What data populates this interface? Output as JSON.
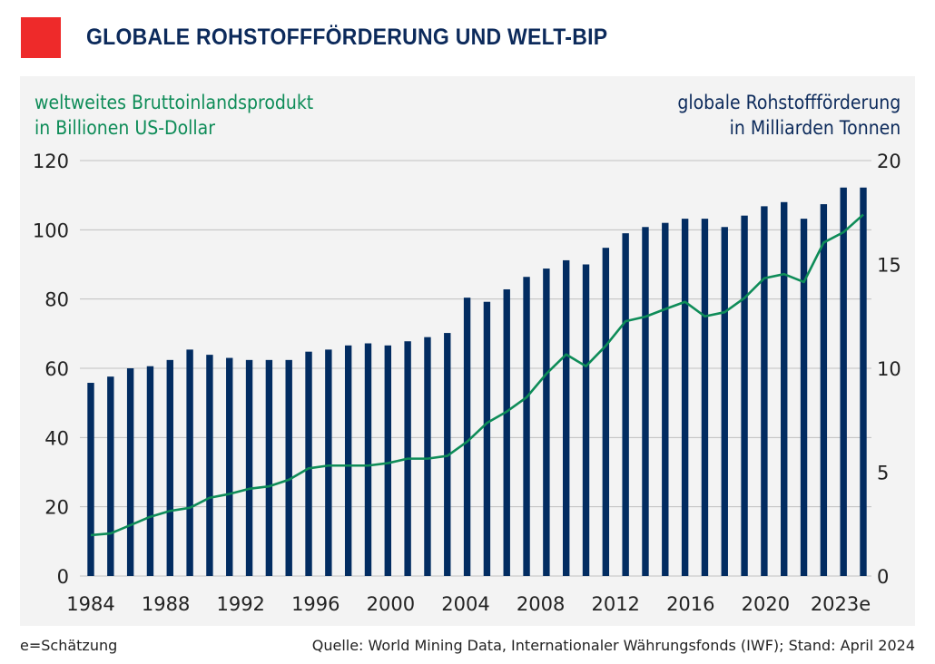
{
  "title": "GLOBALE ROHSTOFFFÖRDERUNG UND WELT-BIP",
  "footer": {
    "note": "e=Schätzung",
    "source": "Quelle: World Mining Data, Internationaler Währungsfonds (IWF); Stand: April 2024"
  },
  "colors": {
    "logo": "#ee2a2a",
    "bars": "#022c61",
    "line": "#0e8c58",
    "title": "#0c2a5b",
    "panel": "#f3f3f3",
    "grid": "#c0c0c0"
  },
  "chart_data": {
    "type": "bar+line",
    "left_axis": {
      "label_line1": "weltweites Bruttoinlandsprodukt",
      "label_line2": "in Billionen US-Dollar",
      "ylim": [
        0,
        120
      ],
      "ticks": [
        "0",
        "20",
        "40",
        "60",
        "80",
        "100",
        "120"
      ]
    },
    "right_axis": {
      "label_line1": "globale Rohstoffförderung",
      "label_line2": "in Milliarden Tonnen",
      "ylim": [
        0,
        20
      ],
      "ticks": [
        "0",
        "5",
        "10",
        "15",
        "20"
      ]
    },
    "x_tick_labels": [
      "1984",
      "1988",
      "1992",
      "1996",
      "2000",
      "2004",
      "2008",
      "2012",
      "2016",
      "2020",
      "2023e"
    ],
    "grid": true,
    "years": [
      1984,
      1985,
      1986,
      1987,
      1988,
      1989,
      1990,
      1991,
      1992,
      1993,
      1994,
      1995,
      1996,
      1997,
      1998,
      1999,
      2000,
      2001,
      2002,
      2003,
      2004,
      2005,
      2006,
      2007,
      2008,
      2009,
      2010,
      2011,
      2012,
      2013,
      2014,
      2015,
      2016,
      2017,
      2018,
      2019,
      2020,
      2021,
      2022,
      2023
    ],
    "series": [
      {
        "axis": "right",
        "kind": "bar",
        "values": [
          9.3,
          9.6,
          10.0,
          10.1,
          10.4,
          10.9,
          10.65,
          10.5,
          10.4,
          10.4,
          10.4,
          10.8,
          10.9,
          11.1,
          11.2,
          11.1,
          11.3,
          11.5,
          11.7,
          13.4,
          13.2,
          13.8,
          14.4,
          14.8,
          15.2,
          15.0,
          15.8,
          16.5,
          16.8,
          17.0,
          17.2,
          17.2,
          16.8,
          17.35,
          17.8,
          18.0,
          17.2,
          17.9,
          18.7,
          18.7
        ]
      },
      {
        "axis": "left",
        "kind": "line",
        "values": [
          11.8,
          12.3,
          14.7,
          17.1,
          18.8,
          19.7,
          22.6,
          23.7,
          25.2,
          25.9,
          27.8,
          31.1,
          31.9,
          31.9,
          31.9,
          32.6,
          33.9,
          33.9,
          34.7,
          38.8,
          44.2,
          47.5,
          51.6,
          58.4,
          64.0,
          60.6,
          66.5,
          73.6,
          74.9,
          77.1,
          79.2,
          75.0,
          76.2,
          80.3,
          86.0,
          87.2,
          84.9,
          96.3,
          99.3,
          104.4
        ]
      }
    ]
  }
}
